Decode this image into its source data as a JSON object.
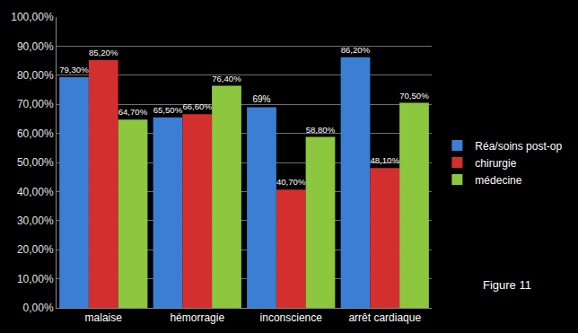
{
  "chart_data": {
    "type": "bar",
    "categories": [
      "malaise",
      "hémorragie",
      "inconscience",
      "arrêt cardiaque"
    ],
    "series": [
      {
        "name": "Réa/soins post-op",
        "color": "#3b7fd4",
        "values": [
          79.3,
          65.5,
          69,
          86.2
        ],
        "value_labels": [
          "79,30%",
          "65,50%",
          "69%",
          "86,20%"
        ]
      },
      {
        "name": "chirurgie",
        "color": "#d42f2f",
        "values": [
          85.2,
          66.6,
          40.7,
          48.1
        ],
        "value_labels": [
          "85,20%",
          "66,60%",
          "40,70%",
          "48,10%"
        ]
      },
      {
        "name": "médecine",
        "color": "#8dc63f",
        "values": [
          64.7,
          76.4,
          58.8,
          70.5
        ],
        "value_labels": [
          "64,70%",
          "76,40%",
          "58,80%",
          "70,50%"
        ]
      }
    ],
    "ylim": [
      0,
      100
    ],
    "yticks": [
      {
        "value": 0,
        "label": "0,00%"
      },
      {
        "value": 10,
        "label": "10,00%"
      },
      {
        "value": 20,
        "label": "20,00%"
      },
      {
        "value": 30,
        "label": "30,00%"
      },
      {
        "value": 40,
        "label": "40,00%"
      },
      {
        "value": 50,
        "label": "50,00%"
      },
      {
        "value": 60,
        "label": "60,00%"
      },
      {
        "value": 70,
        "label": "70,00%"
      },
      {
        "value": 80,
        "label": "80,00%"
      },
      {
        "value": 90,
        "label": "90,00%"
      },
      {
        "value": 100,
        "label": "100,00%"
      }
    ],
    "grid": true,
    "legend": "right",
    "data_labels": true,
    "annotations": [
      {
        "text": "Figure 11"
      }
    ]
  }
}
